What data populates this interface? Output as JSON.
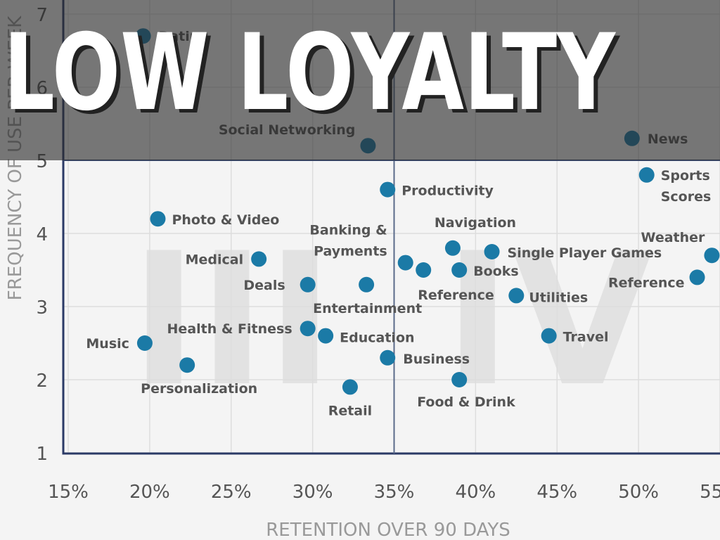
{
  "chart_data": {
    "type": "scatter",
    "title": "LOW LOYALTY",
    "x_label": "RETENTION OVER 90 DAYS",
    "y_label": "FREQUENCY OF USE PER WEEK",
    "color": "#1b7aa6",
    "grid": true,
    "xlim": [
      15,
      55
    ],
    "ylim": [
      1,
      7
    ],
    "xticks": [
      {
        "value": 15,
        "label": "15%"
      },
      {
        "value": 20,
        "label": "20%"
      },
      {
        "value": 25,
        "label": "25%"
      },
      {
        "value": 30,
        "label": "30%"
      },
      {
        "value": 35,
        "label": "35%"
      },
      {
        "value": 40,
        "label": "40%"
      },
      {
        "value": 45,
        "label": "45%"
      },
      {
        "value": 50,
        "label": "50%"
      },
      {
        "value": 55,
        "label": "55%"
      }
    ],
    "yticks": [
      1,
      2,
      3,
      4,
      5,
      6,
      7
    ],
    "x_divider": 35,
    "y_divider": 5,
    "quadrant_labels": [
      "III",
      "IV"
    ],
    "points": [
      {
        "label": [
          "Dating"
        ],
        "x": 19.6,
        "y": 6.7
      },
      {
        "label": [
          "Social Networking"
        ],
        "x": 33.4,
        "y": 5.2
      },
      {
        "label": [
          "News"
        ],
        "x": 49.6,
        "y": 5.3
      },
      {
        "label": [
          "Sports",
          "Scores"
        ],
        "x": 50.5,
        "y": 4.8
      },
      {
        "label": [
          "Productivity"
        ],
        "x": 34.6,
        "y": 4.6
      },
      {
        "label": [
          "Photo & Video"
        ],
        "x": 20.5,
        "y": 4.2
      },
      {
        "label": [
          "Navigation"
        ],
        "x": 38.6,
        "y": 3.8
      },
      {
        "label": [
          "Single Player Games"
        ],
        "x": 41.0,
        "y": 3.75
      },
      {
        "label": [
          "Weather"
        ],
        "x": 54.5,
        "y": 3.7
      },
      {
        "label": [
          "Medical"
        ],
        "x": 26.7,
        "y": 3.65
      },
      {
        "label": [
          "Banking &",
          "Payments"
        ],
        "x": 35.7,
        "y": 3.6
      },
      {
        "label": [
          "Reference"
        ],
        "x": 36.8,
        "y": 3.5
      },
      {
        "label": [
          "Books"
        ],
        "x": 39.0,
        "y": 3.5
      },
      {
        "label": [
          "Reference"
        ],
        "x": 53.6,
        "y": 3.4
      },
      {
        "label": [
          "Deals"
        ],
        "x": 29.7,
        "y": 3.3
      },
      {
        "label": [
          "Entertainment"
        ],
        "x": 33.3,
        "y": 3.3
      },
      {
        "label": [
          "Utilities"
        ],
        "x": 42.5,
        "y": 3.15
      },
      {
        "label": [
          "Health & Fitness"
        ],
        "x": 29.7,
        "y": 2.7
      },
      {
        "label": [
          "Education"
        ],
        "x": 30.8,
        "y": 2.6
      },
      {
        "label": [
          "Travel"
        ],
        "x": 44.5,
        "y": 2.6
      },
      {
        "label": [
          "Music"
        ],
        "x": 19.7,
        "y": 2.5
      },
      {
        "label": [
          "Business"
        ],
        "x": 34.6,
        "y": 2.3
      },
      {
        "label": [
          "Personalization"
        ],
        "x": 22.3,
        "y": 2.2
      },
      {
        "label": [
          "Food & Drink"
        ],
        "x": 39.0,
        "y": 2.0
      },
      {
        "label": [
          "Retail"
        ],
        "x": 32.3,
        "y": 1.9
      }
    ]
  }
}
